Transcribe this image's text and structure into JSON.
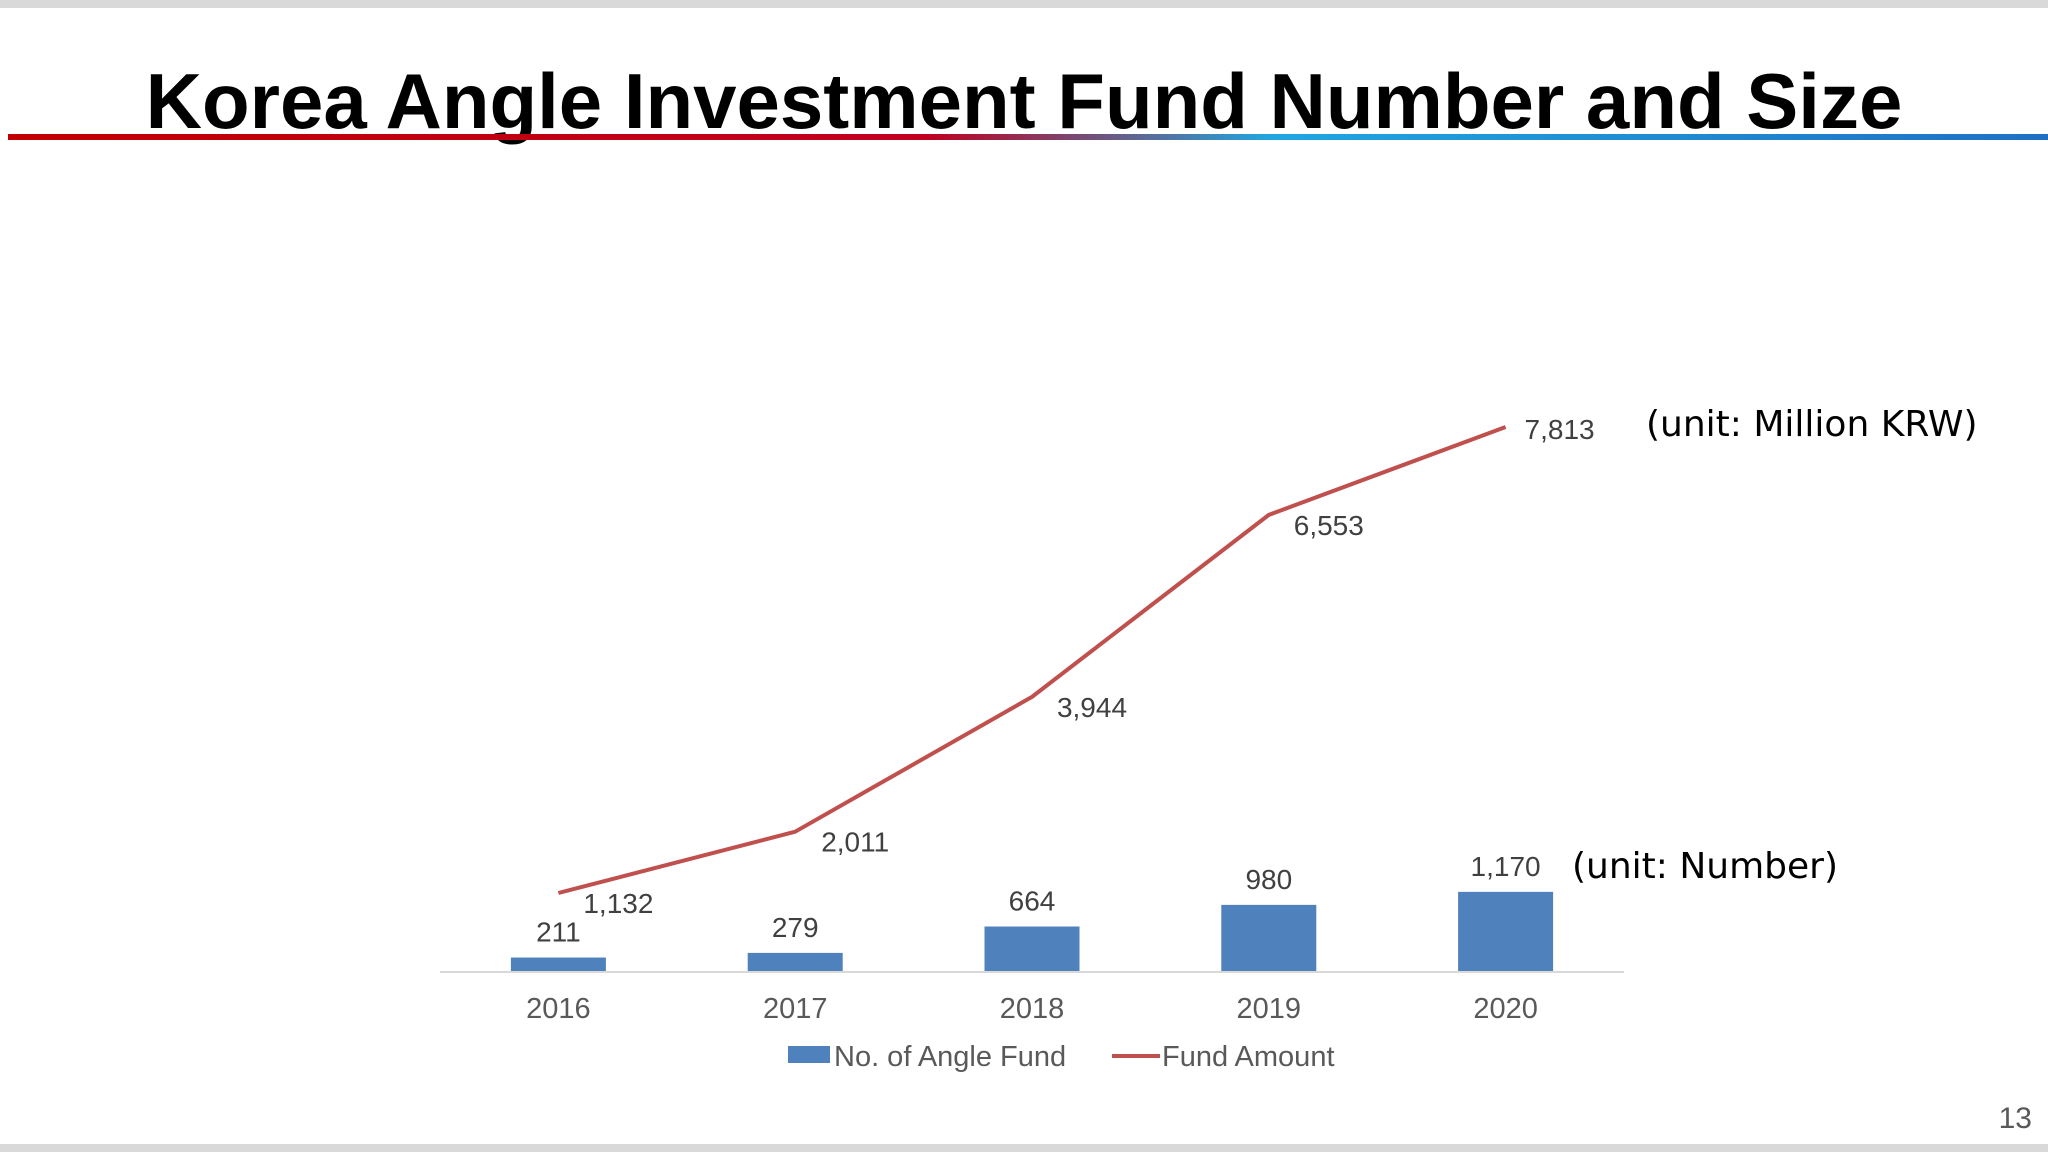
{
  "slide": {
    "title": "Korea Angle Investment Fund Number and Size",
    "page_number": "13",
    "unit_line": "(unit: Million KRW)",
    "unit_bars": "(unit: Number)"
  },
  "colors": {
    "bar": "#4F81BD",
    "line": "#C0504D",
    "axis_text": "#595959",
    "axis_line": "#D9D9D9"
  },
  "chart_data": {
    "type": "bar",
    "categories": [
      "2016",
      "2017",
      "2018",
      "2019",
      "2020"
    ],
    "series": [
      {
        "name": "No. of Angle Fund",
        "type": "bar",
        "values": [
          211,
          279,
          664,
          980,
          1170
        ],
        "labels": [
          "211",
          "279",
          "664",
          "980",
          "1,170"
        ]
      },
      {
        "name": "Fund Amount",
        "type": "line",
        "values": [
          1132,
          2011,
          3944,
          6553,
          7813
        ],
        "labels": [
          "1,132",
          "2,011",
          "3,944",
          "6,553",
          "7,813"
        ]
      }
    ],
    "legend": "bottom",
    "grid": false
  }
}
